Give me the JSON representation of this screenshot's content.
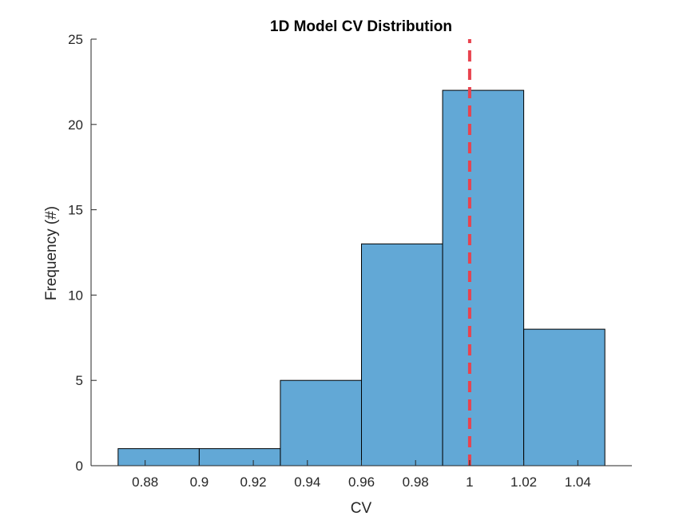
{
  "chart_data": {
    "type": "bar",
    "title": "1D Model CV Distribution",
    "xlabel": "CV",
    "ylabel": "Frequency (#)",
    "bins": [
      {
        "start": 0.87,
        "end": 0.9,
        "count": 1
      },
      {
        "start": 0.9,
        "end": 0.93,
        "count": 1
      },
      {
        "start": 0.93,
        "end": 0.96,
        "count": 5
      },
      {
        "start": 0.96,
        "end": 0.99,
        "count": 13
      },
      {
        "start": 0.99,
        "end": 1.02,
        "count": 22
      },
      {
        "start": 1.02,
        "end": 1.05,
        "count": 8
      }
    ],
    "xlim": [
      0.86,
      1.06
    ],
    "ylim": [
      0,
      25
    ],
    "xticks": [
      0.88,
      0.9,
      0.92,
      0.94,
      0.96,
      0.98,
      1.0,
      1.02,
      1.04
    ],
    "xtick_labels": [
      "0.88",
      "0.9",
      "0.92",
      "0.94",
      "0.96",
      "0.98",
      "1",
      "1.02",
      "1.04"
    ],
    "yticks": [
      0,
      5,
      10,
      15,
      20,
      25
    ],
    "ytick_labels": [
      "0",
      "5",
      "10",
      "15",
      "20",
      "25"
    ],
    "reference_line": {
      "x": 1.0,
      "style": "dashed",
      "color": "#e8434f"
    },
    "bar_color": "#62a8d6",
    "bar_edge_color": "#000000",
    "grid": false,
    "legend": "none"
  }
}
